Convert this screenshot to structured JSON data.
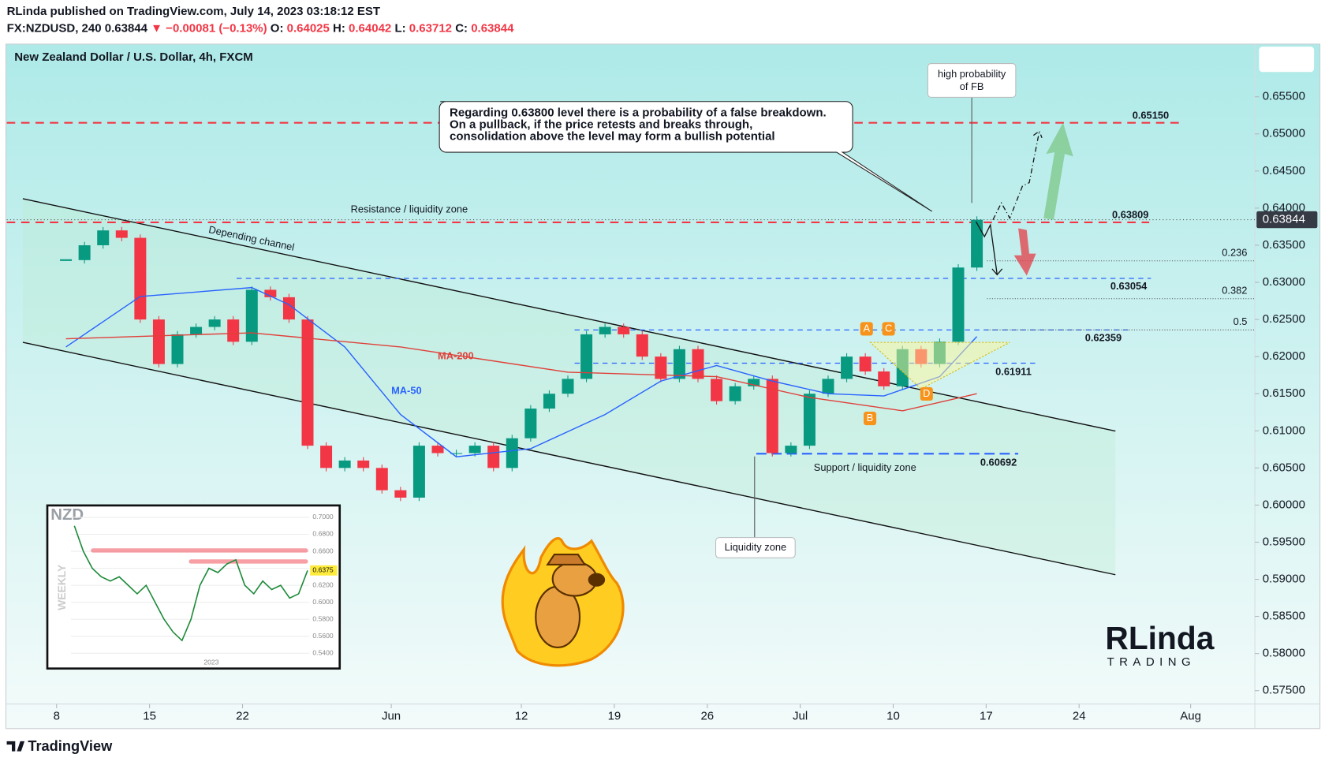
{
  "header": {
    "publisher": "RLinda published on TradingView.com, July 14, 2023 03:18:12 EST",
    "symbol": "FX:NZDUSD, 240",
    "last": 0.63844,
    "change": "▼ −0.00081 (−0.13%)",
    "ohlc": [
      {
        "label": "O:",
        "value": 0.64025
      },
      {
        "label": "H:",
        "value": 0.64042
      },
      {
        "label": "L:",
        "value": 0.63712
      },
      {
        "label": "C:",
        "value": 0.63844
      }
    ]
  },
  "chart_data": [
    {
      "type": "candlestick",
      "title": "New Zealand Dollar / U.S. Dollar, 4h, FXCM",
      "x": [
        "2023-05-08",
        "2023-05-09",
        "2023-05-10",
        "2023-05-11",
        "2023-05-12",
        "2023-05-15",
        "2023-05-16",
        "2023-05-17",
        "2023-05-18",
        "2023-05-19",
        "2023-05-22",
        "2023-05-23",
        "2023-05-24",
        "2023-05-25",
        "2023-05-26",
        "2023-05-29",
        "2023-05-30",
        "2023-05-31",
        "2023-06-01",
        "2023-06-02",
        "2023-06-05",
        "2023-06-06",
        "2023-06-07",
        "2023-06-08",
        "2023-06-09",
        "2023-06-12",
        "2023-06-13",
        "2023-06-14",
        "2023-06-15",
        "2023-06-16",
        "2023-06-19",
        "2023-06-20",
        "2023-06-21",
        "2023-06-22",
        "2023-06-23",
        "2023-06-26",
        "2023-06-27",
        "2023-06-28",
        "2023-06-29",
        "2023-06-30",
        "2023-07-03",
        "2023-07-04",
        "2023-07-05",
        "2023-07-06",
        "2023-07-07",
        "2023-07-10",
        "2023-07-11",
        "2023-07-12",
        "2023-07-13",
        "2023-07-14"
      ],
      "close": [
        0.633,
        0.635,
        0.637,
        0.636,
        0.625,
        0.619,
        0.623,
        0.624,
        0.625,
        0.622,
        0.629,
        0.628,
        0.625,
        0.608,
        0.605,
        0.606,
        0.605,
        0.602,
        0.601,
        0.608,
        0.607,
        0.607,
        0.608,
        0.605,
        0.609,
        0.613,
        0.615,
        0.617,
        0.623,
        0.624,
        0.623,
        0.62,
        0.617,
        0.621,
        0.617,
        0.614,
        0.616,
        0.617,
        0.607,
        0.608,
        0.615,
        0.617,
        0.62,
        0.618,
        0.616,
        0.621,
        0.619,
        0.622,
        0.632,
        0.63844
      ],
      "up_color": "#089981",
      "down_color": "#f23645",
      "lines": [
        {
          "name": "MA-50",
          "color": "#2962ff",
          "x": [
            "2023-05-08",
            "2023-05-12",
            "2023-05-22",
            "2023-05-24",
            "2023-05-29",
            "2023-06-01",
            "2023-06-06",
            "2023-06-12",
            "2023-06-16",
            "2023-06-21",
            "2023-06-26",
            "2023-06-29",
            "2023-07-04",
            "2023-07-07",
            "2023-07-12",
            "2023-07-14"
          ],
          "values": [
            0.6213,
            0.6281,
            0.6293,
            0.627,
            0.6213,
            0.6122,
            0.6065,
            0.6076,
            0.6122,
            0.6167,
            0.6188,
            0.6167,
            0.615,
            0.6147,
            0.6173,
            0.6227
          ]
        },
        {
          "name": "MA-200",
          "color": "#e0403a",
          "x": [
            "2023-05-08",
            "2023-05-22",
            "2023-06-01",
            "2023-06-14",
            "2023-06-26",
            "2023-07-03",
            "2023-07-10",
            "2023-07-14"
          ],
          "values": [
            0.6224,
            0.6232,
            0.6213,
            0.6179,
            0.6173,
            0.6145,
            0.6127,
            0.615
          ]
        }
      ],
      "levels": [
        {
          "value": 0.6515,
          "label": "0.65150",
          "color": "#f23645"
        },
        {
          "value": 0.63809,
          "color": "#f23645"
        },
        {
          "value": 0.63054,
          "color": "#2962ff"
        },
        {
          "value": 0.62359,
          "color": "#2962ff"
        },
        {
          "value": 0.61911,
          "color": "#2962ff"
        },
        {
          "value": 0.60692,
          "color": "#2962ff"
        }
      ],
      "fib": [
        {
          "ratio": 0.236,
          "price": 0.6329
        },
        {
          "ratio": 0.382,
          "price": 0.6278
        },
        {
          "ratio": 0.5,
          "price": 0.6236
        }
      ],
      "last_price": 0.63844,
      "ylim": [
        0.5732,
        0.6621
      ],
      "yticks": [
        {
          "value": 0.575,
          "label": "0.57500"
        },
        {
          "value": 0.58,
          "label": "0.58000"
        },
        {
          "value": 0.585,
          "label": "0.58500"
        },
        {
          "value": 0.59,
          "label": "0.59000"
        },
        {
          "value": 0.595,
          "label": "0.59500"
        },
        {
          "value": 0.6,
          "label": "0.60000"
        },
        {
          "value": 0.605,
          "label": "0.60500"
        },
        {
          "value": 0.61,
          "label": "0.61000"
        },
        {
          "value": 0.615,
          "label": "0.61500"
        },
        {
          "value": 0.62,
          "label": "0.62000"
        },
        {
          "value": 0.625,
          "label": "0.62500"
        },
        {
          "value": 0.63,
          "label": "0.63000"
        },
        {
          "value": 0.635,
          "label": "0.63500"
        },
        {
          "value": 0.64,
          "label": "0.64000"
        },
        {
          "value": 0.645,
          "label": "0.64500"
        },
        {
          "value": 0.65,
          "label": "0.65000"
        },
        {
          "value": 0.655,
          "label": "0.65500"
        }
      ],
      "xlim": [
        "2023-05-03",
        "2023-08-07"
      ],
      "xticks": [
        {
          "value": "2023-05-08",
          "label": "8"
        },
        {
          "value": "2023-05-15",
          "label": "15"
        },
        {
          "value": "2023-05-22",
          "label": "22"
        },
        {
          "value": "2023-06-01",
          "label": "Jun"
        },
        {
          "value": "2023-06-12",
          "label": "12"
        },
        {
          "value": "2023-06-19",
          "label": "19"
        },
        {
          "value": "2023-06-26",
          "label": "26"
        },
        {
          "value": "2023-07-03",
          "label": "Jul"
        },
        {
          "value": "2023-07-10",
          "label": "10"
        },
        {
          "value": "2023-07-17",
          "label": "17"
        },
        {
          "value": "2023-07-24",
          "label": "24"
        },
        {
          "value": "2023-08-01",
          "label": "Aug"
        }
      ],
      "annotations": {
        "note": [
          "Regarding 0.63800 level there is a probability of a false breakdown.",
          "On a pullback, if the price retests and breaks through,",
          "consolidation above the level may form a bullish potential"
        ],
        "fb": [
          "high probability",
          "of FB"
        ],
        "resistance": "Resistance / liquidity zone",
        "channel": "Depending channel",
        "support": "Support / liquidity zone",
        "liquidity": "Liquidity zone",
        "points": [
          "A",
          "B",
          "C",
          "D"
        ]
      }
    },
    {
      "type": "line",
      "title": "NZD",
      "ylabel": "WEEKLY",
      "xtick": "2023",
      "color": "#1e8a3a",
      "values": [
        0.69,
        0.66,
        0.64,
        0.63,
        0.625,
        0.63,
        0.62,
        0.61,
        0.62,
        0.6,
        0.58,
        0.565,
        0.555,
        0.58,
        0.62,
        0.64,
        0.635,
        0.645,
        0.65,
        0.62,
        0.61,
        0.625,
        0.615,
        0.62,
        0.605,
        0.61,
        0.6375
      ],
      "last": 0.6375,
      "levels": [
        0.661,
        0.648
      ],
      "ylim": [
        0.531,
        0.708
      ],
      "yticks": [
        {
          "value": 0.7,
          "label": "0.7000"
        },
        {
          "value": 0.68,
          "label": "0.6800"
        },
        {
          "value": 0.66,
          "label": "0.6600"
        },
        {
          "value": 0.64,
          "label": "0.6400"
        },
        {
          "value": 0.62,
          "label": "0.6200"
        },
        {
          "value": 0.6,
          "label": "0.6000"
        },
        {
          "value": 0.58,
          "label": "0.5800"
        },
        {
          "value": 0.56,
          "label": "0.5600"
        },
        {
          "value": 0.54,
          "label": "0.5400"
        }
      ]
    }
  ],
  "logo": {
    "name": "RLinda",
    "sub": "TRADING"
  },
  "footer": "TradingView"
}
